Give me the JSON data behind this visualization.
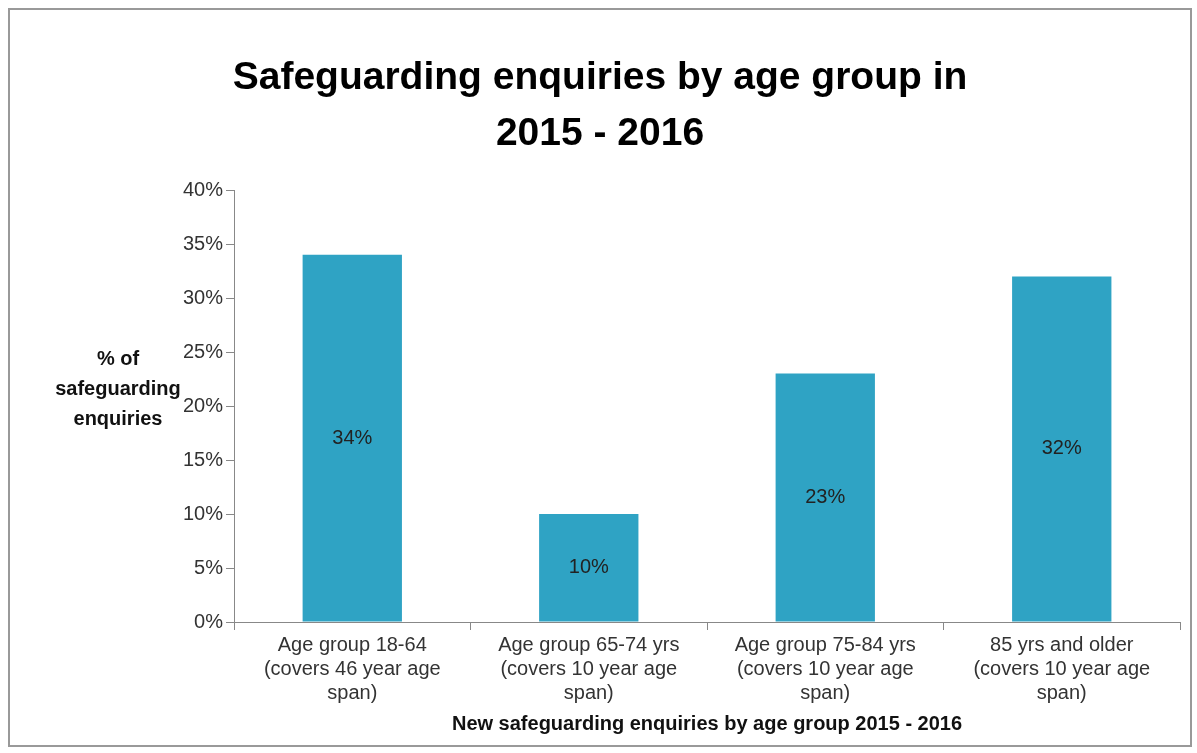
{
  "chart_data": {
    "type": "bar",
    "title": "Safeguarding enquiries by age group in 2015 - 2016",
    "xlabel": "New safeguarding enquiries by age group 2015 - 2016",
    "ylabel": "% of safeguarding enquiries",
    "categories": [
      "Age group 18-64 (covers 46 year age span)",
      "Age group 65-74 yrs (covers 10 year age span)",
      "Age group 75-84 yrs (covers 10 year age span)",
      "85 yrs and older (covers 10 year age span)"
    ],
    "values": [
      34,
      10,
      23,
      32
    ],
    "color": "#2fa3c4",
    "ylim": [
      0,
      40
    ],
    "yticks": [
      {
        "value": 0,
        "label": "0%"
      },
      {
        "value": 5,
        "label": "5%"
      },
      {
        "value": 10,
        "label": "10%"
      },
      {
        "value": 15,
        "label": "15%"
      },
      {
        "value": 20,
        "label": "20%"
      },
      {
        "value": 25,
        "label": "25%"
      },
      {
        "value": 30,
        "label": "30%"
      },
      {
        "value": 35,
        "label": "35%"
      },
      {
        "value": 40,
        "label": "40%"
      }
    ],
    "value_labels": [
      "34%",
      "10%",
      "23%",
      "32%"
    ],
    "grid": false,
    "legend": false
  }
}
